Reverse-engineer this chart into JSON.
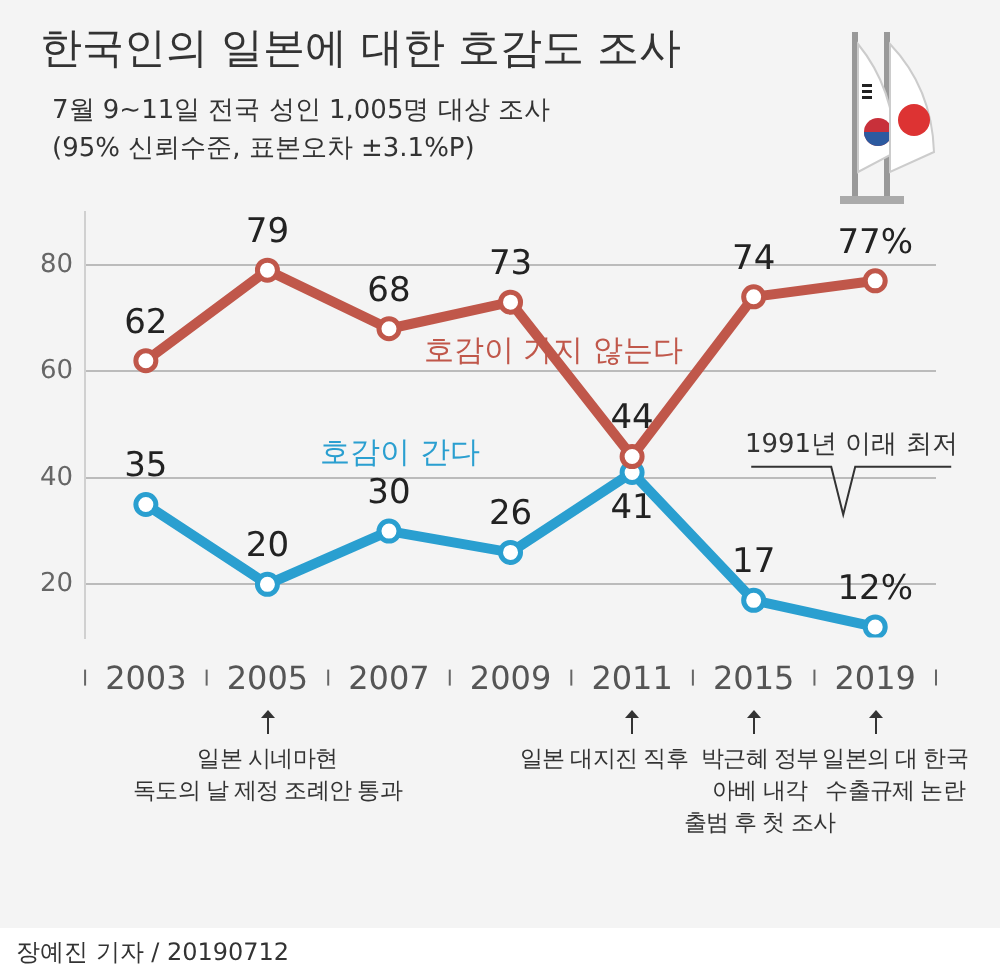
{
  "chart_data": {
    "type": "line",
    "title": "한국인의 일본에 대한 호감도 조사",
    "subtitle": "7월 9~11일 전국 성인 1,005명 대상 조사\n(95% 신뢰수준, 표본오차 ±3.1%P)",
    "categories": [
      "2003",
      "2005",
      "2007",
      "2009",
      "2011",
      "2015",
      "2019"
    ],
    "series": [
      {
        "name": "호감이 가지 않는다",
        "color": "#c0574a",
        "values": [
          62,
          79,
          68,
          73,
          44,
          74,
          77
        ],
        "value_labels": [
          "62",
          "79",
          "68",
          "73",
          "44",
          "74",
          "77%"
        ]
      },
      {
        "name": "호감이 간다",
        "color": "#2a9fd0",
        "values": [
          35,
          20,
          30,
          26,
          41,
          17,
          12
        ],
        "value_labels": [
          "35",
          "20",
          "30",
          "26",
          "41",
          "17",
          "12%"
        ]
      }
    ],
    "ylim": [
      10,
      90
    ],
    "yticks": [
      20,
      40,
      60,
      80
    ],
    "grid": "y",
    "legend": false,
    "marker": "circle",
    "line_style": "solid",
    "annotations": [
      "일본 시네마현\n독도의 날 제정 조례안 통과",
      "일본 대지진 직후",
      "박근혜 정부\n아베 내각\n출범 후 첫 조사",
      "일본의 대 한국\n수출규제 논란",
      "1991년 이래 최저",
      "장예진 기자 / 20190712"
    ]
  }
}
